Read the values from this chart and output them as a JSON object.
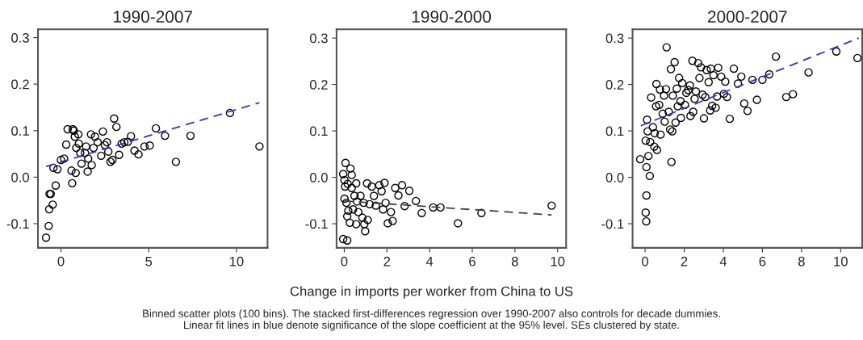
{
  "chart_data": [
    {
      "type": "scatter",
      "title": "1990-2007",
      "xlim": [
        -1.31,
        11.77
      ],
      "ylim": [
        -0.152,
        0.318
      ],
      "xticks": [
        0,
        5,
        10
      ],
      "yticks": [
        {
          "value": -0.1,
          "label": "-0.1"
        },
        {
          "value": 0,
          "label": "0.0"
        },
        {
          "value": 0.1,
          "label": "0.1"
        },
        {
          "value": 0.2,
          "label": "0.2"
        },
        {
          "value": 0.3,
          "label": "0.3"
        }
      ],
      "series": [
        {
          "marker": "circle",
          "color": "#000000",
          "x": [
            -0.85,
            -0.7,
            -0.67,
            -0.47,
            -0.65,
            -0.58,
            -0.3,
            -0.43,
            -0.2,
            0,
            0.18,
            0.3,
            0.38,
            0.6,
            0.64,
            0.84,
            0.67,
            0.73,
            0.79,
            0.99,
            0.87,
            1.02,
            1.1,
            1.17,
            1.37,
            1.43,
            1.55,
            1.52,
            1.71,
            1.75,
            1.86,
            1.94,
            2.09,
            2.29,
            2.39,
            2.5,
            2.62,
            2.7,
            2.82,
            2.93,
            3.03,
            3.16,
            3.31,
            3.46,
            3.61,
            3.81,
            3.99,
            4.19,
            4.42,
            4.76,
            5.06,
            5.41,
            5.93,
            6.55,
            7.38,
            9.63,
            11.31
          ],
          "values": [
            -0.13,
            -0.105,
            -0.069,
            -0.059,
            -0.036,
            -0.036,
            -0.018,
            0.02,
            0.017,
            0.037,
            0.04,
            0.07,
            0.103,
            0.014,
            -0.013,
            0.009,
            0.103,
            0.1,
            0.087,
            0.092,
            0.063,
            0.072,
            0.052,
            0.029,
            0.052,
            0.066,
            0.04,
            0.012,
            0.092,
            0.026,
            0.063,
            0.087,
            0.075,
            0.046,
            0.098,
            0.069,
            0.075,
            0.055,
            0.033,
            0.037,
            0.126,
            0.108,
            0.048,
            0.072,
            0.075,
            0.076,
            0.088,
            0.057,
            0.049,
            0.066,
            0.068,
            0.105,
            0.089,
            0.033,
            0.089,
            0.138,
            0.066
          ]
        },
        {
          "type": "line",
          "color": "#3333cc",
          "line_style": "dashed",
          "x": [
            -0.85,
            11.31
          ],
          "values": [
            0.023,
            0.16
          ]
        }
      ]
    },
    {
      "type": "scatter",
      "title": "1990-2000",
      "xlabel": "Change in imports per worker from China to US",
      "annotations": [
        "Binned scatter plots (100 bins). The stacked first-differences regression over 1990-2007 also controls for decade dummies. Linear fit lines in blue denote significance of the slope coefficient at the 95% level. SEs clustered by state."
      ],
      "xlim": [
        -0.36,
        10.4
      ],
      "ylim": [
        -0.152,
        0.319
      ],
      "xticks": [
        0,
        2,
        4,
        6,
        8,
        10
      ],
      "yticks": [
        {
          "value": -0.1,
          "label": "-0.1"
        },
        {
          "value": 0,
          "label": "0.0"
        },
        {
          "value": 0.1,
          "label": "0.1"
        },
        {
          "value": 0.2,
          "label": "0.2"
        },
        {
          "value": 0.3,
          "label": "0.3"
        }
      ],
      "series": [
        {
          "marker": "circle",
          "color": "#000000",
          "x": [
            0.06,
            0.29,
            -0.05,
            0.35,
            0.01,
            0.04,
            0.16,
            0.56,
            0.35,
            0.01,
            0.1,
            0.19,
            0.14,
            0.26,
            0.41,
            0.48,
            0.6,
            0.66,
            0.76,
            0.91,
            0.85,
            0.94,
            0.98,
            0.56,
            1.07,
            1.1,
            1.19,
            1.29,
            1.39,
            1.48,
            1.64,
            1.75,
            1.89,
            1.82,
            1.94,
            2.04,
            2.19,
            2.27,
            2.39,
            2.54,
            2.71,
            2.83,
            3.05,
            3.36,
            3.63,
            4.17,
            4.51,
            5.33,
            6.43,
            9.72,
            -0.05,
            0.14
          ],
          "values": [
            0.031,
            0.019,
            0.007,
            0.005,
            -0.006,
            -0.02,
            -0.014,
            -0.013,
            -0.023,
            -0.046,
            -0.055,
            -0.072,
            -0.084,
            -0.098,
            -0.069,
            -0.04,
            -0.052,
            -0.075,
            -0.04,
            -0.055,
            -0.087,
            -0.101,
            -0.116,
            -0.101,
            -0.013,
            -0.092,
            -0.058,
            -0.02,
            -0.04,
            -0.061,
            -0.017,
            -0.03,
            -0.012,
            -0.069,
            -0.055,
            -0.099,
            -0.075,
            -0.094,
            -0.023,
            -0.039,
            -0.017,
            -0.062,
            -0.029,
            -0.051,
            -0.077,
            -0.065,
            -0.065,
            -0.099,
            -0.077,
            -0.061,
            -0.133,
            -0.136
          ]
        },
        {
          "type": "line",
          "color": "#404040",
          "line_style": "dashed",
          "x": [
            0,
            9.72
          ],
          "values": [
            -0.051,
            -0.081
          ]
        }
      ]
    },
    {
      "type": "scatter",
      "title": "2000-2007",
      "xlim": [
        -0.64,
        11.1
      ],
      "ylim": [
        -0.152,
        0.319
      ],
      "xticks": [
        0,
        2,
        4,
        6,
        8,
        10
      ],
      "yticks": [
        {
          "value": -0.1,
          "label": "-0.1"
        },
        {
          "value": 0,
          "label": "0.0"
        },
        {
          "value": 0.1,
          "label": "0.1"
        },
        {
          "value": 0.2,
          "label": "0.2"
        },
        {
          "value": 0.3,
          "label": "0.3"
        }
      ],
      "series": [
        {
          "marker": "circle",
          "color": "#000000",
          "x": [
            -0.25,
            0.06,
            0.03,
            0.07,
            0.07,
            0.24,
            0.17,
            0.03,
            0.26,
            0.1,
            0.13,
            0.4,
            0.47,
            0.61,
            0.49,
            0.31,
            0.56,
            0.58,
            0.72,
            0.79,
            0.9,
            0.76,
            0.97,
            1.0,
            1.07,
            1.1,
            1.21,
            1.28,
            1.32,
            1.39,
            1.35,
            1.42,
            1.51,
            1.56,
            1.62,
            1.67,
            1.74,
            1.81,
            1.83,
            1.9,
            2.04,
            2.11,
            2.21,
            2.29,
            2.32,
            2.46,
            2.42,
            2.53,
            2.6,
            2.72,
            2.78,
            2.86,
            2.94,
            3.01,
            3.08,
            3.15,
            3.25,
            3.36,
            3.33,
            3.43,
            3.5,
            3.61,
            3.74,
            3.68,
            3.89,
            4.03,
            4.1,
            4.19,
            4.33,
            4.54,
            4.75,
            4.92,
            5.07,
            5.24,
            5.49,
            5.72,
            6.0,
            6.35,
            6.69,
            7.22,
            7.56,
            8.36,
            9.78,
            10.86
          ],
          "values": [
            0.039,
            -0.095,
            -0.076,
            -0.039,
            0.022,
            0.003,
            0.046,
            0.079,
            0.076,
            0.124,
            0.099,
            0.108,
            0.066,
            0.059,
            0.095,
            0.172,
            0.153,
            0.201,
            0.156,
            0.092,
            0.137,
            0.189,
            0.176,
            0.12,
            0.19,
            0.28,
            0.141,
            0.103,
            0.233,
            0.099,
            0.033,
            0.176,
            0.248,
            0.118,
            0.191,
            0.153,
            0.214,
            0.164,
            0.128,
            0.203,
            0.156,
            0.182,
            0.188,
            0.198,
            0.132,
            0.141,
            0.251,
            0.169,
            0.185,
            0.246,
            0.214,
            0.237,
            0.178,
            0.127,
            0.173,
            0.231,
            0.205,
            0.234,
            0.144,
            0.154,
            0.22,
            0.15,
            0.236,
            0.174,
            0.217,
            0.18,
            0.206,
            0.173,
            0.126,
            0.234,
            0.202,
            0.217,
            0.159,
            0.143,
            0.21,
            0.167,
            0.21,
            0.222,
            0.26,
            0.173,
            0.179,
            0.226,
            0.271,
            0.257
          ]
        },
        {
          "type": "line",
          "color": "#3333cc",
          "line_style": "dashed",
          "x": [
            -0.22,
            10.93
          ],
          "values": [
            0.111,
            0.3
          ]
        }
      ]
    }
  ]
}
